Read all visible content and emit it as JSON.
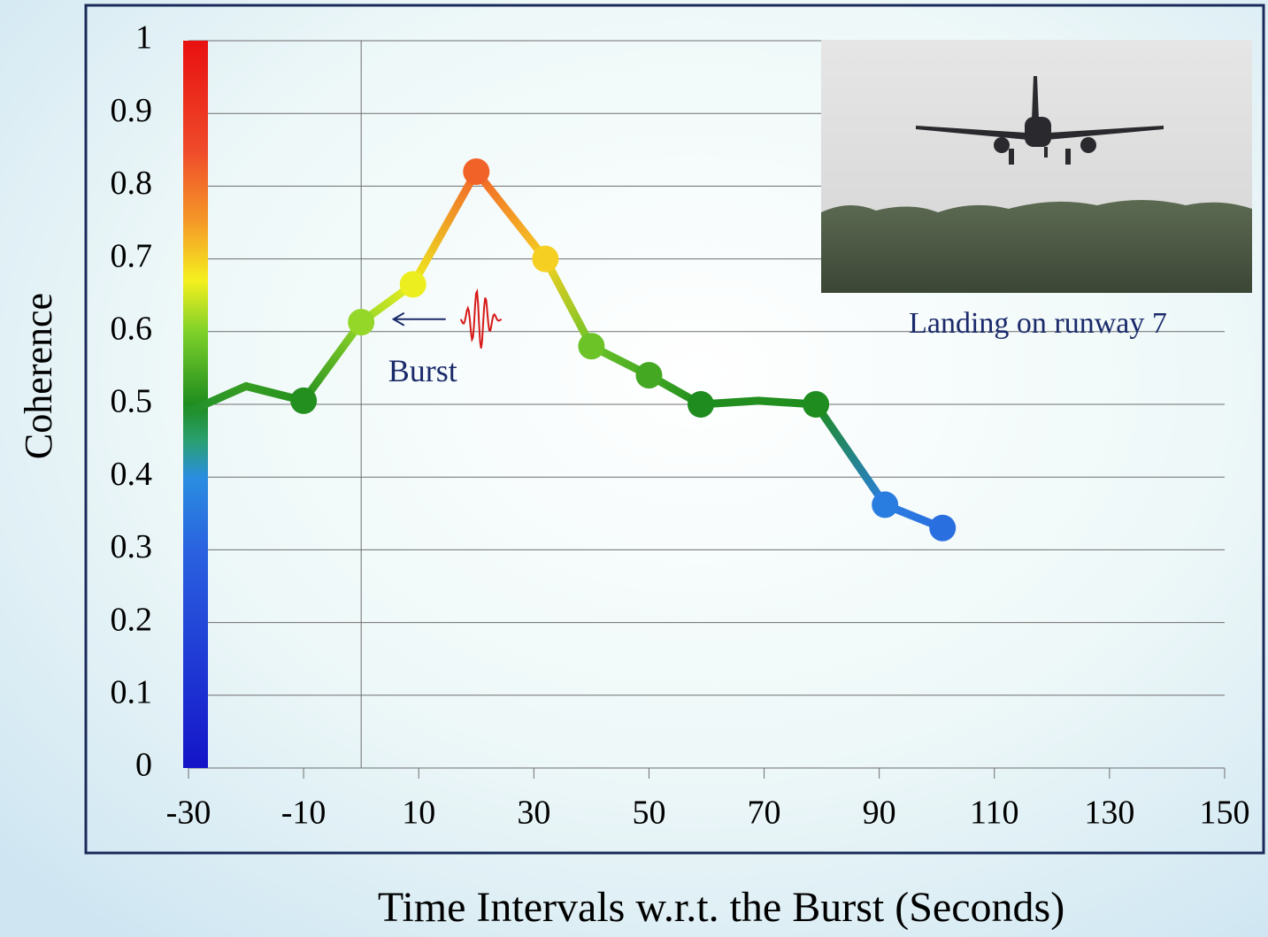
{
  "chart_data": {
    "type": "line",
    "xlabel": "Time Intervals w.r.t. the Burst (Seconds)",
    "ylabel": "Coherence",
    "x": [
      -30,
      -20,
      -10,
      0,
      9,
      20,
      32,
      40,
      50,
      59,
      69,
      79,
      91,
      101
    ],
    "values": [
      0.49,
      0.525,
      0.505,
      0.613,
      0.665,
      0.82,
      0.7,
      0.58,
      0.54,
      0.5,
      0.505,
      0.5,
      0.362,
      0.33
    ],
    "marker": [
      false,
      false,
      true,
      true,
      true,
      true,
      true,
      true,
      true,
      true,
      false,
      true,
      true,
      true
    ],
    "xlim": [
      -30,
      150
    ],
    "ylim": [
      0,
      1
    ],
    "xticks": [
      -30,
      -10,
      10,
      30,
      50,
      70,
      90,
      110,
      130,
      150
    ],
    "yticks": [
      0,
      0.1,
      0.2,
      0.3,
      0.4,
      0.5,
      0.6,
      0.7,
      0.8,
      0.9,
      1
    ],
    "grid": "horizontal",
    "vertical_gridline_at": 0,
    "colorbar": true,
    "colormap": [
      [
        0,
        "#1414c8"
      ],
      [
        0.3,
        "#2a62e0"
      ],
      [
        0.4,
        "#2a8ee0"
      ],
      [
        0.45,
        "#2aa070"
      ],
      [
        0.5,
        "#1e8c1e"
      ],
      [
        0.6,
        "#7ed12a"
      ],
      [
        0.67,
        "#f5f01e"
      ],
      [
        0.75,
        "#f59a28"
      ],
      [
        0.85,
        "#ef4a2a"
      ],
      [
        1,
        "#e81010"
      ]
    ],
    "annotations": [
      {
        "text": "Burst",
        "x": 9,
        "y": 0.6
      }
    ],
    "inset": {
      "caption": "Landing on runway 7"
    }
  }
}
